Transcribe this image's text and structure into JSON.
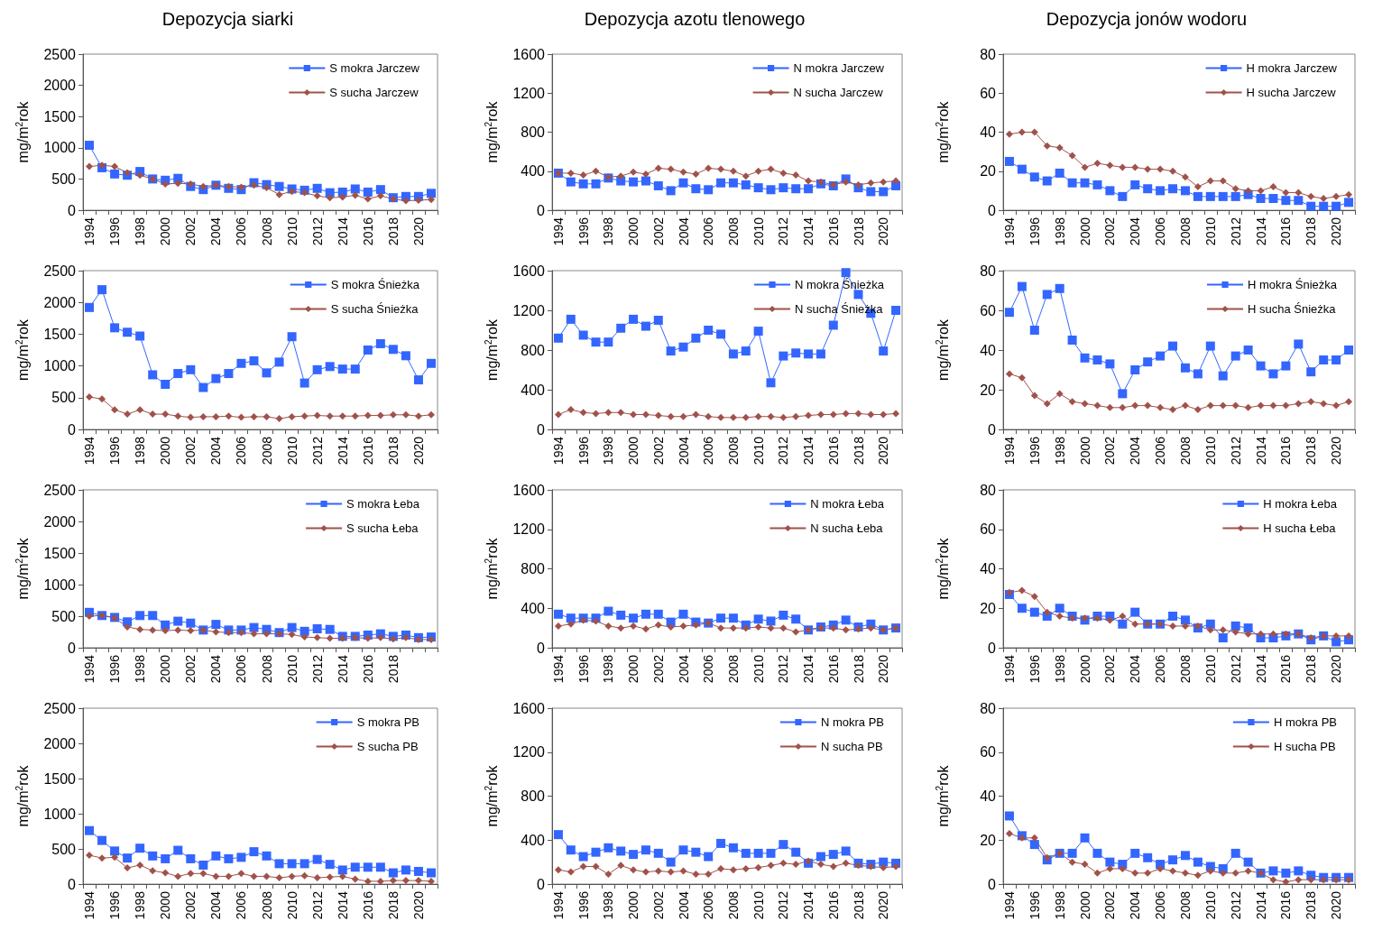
{
  "chart_data": [
    {
      "type": "line",
      "title": "Depozycja siarki",
      "ylabel": "mg/m$^{2}$rok",
      "categories": [
        "1994",
        null,
        "1996",
        null,
        "1998",
        null,
        "2000",
        null,
        "2002",
        null,
        "2004",
        null,
        "2006",
        null,
        "2008",
        null,
        "2010",
        null,
        "2012",
        null,
        "2014",
        null,
        "2016",
        null,
        "2018",
        null,
        "2020",
        null
      ],
      "ylim": [
        0,
        2500
      ],
      "yticks": [
        0,
        500,
        1000,
        1500,
        2000,
        2500
      ],
      "legend": "top right",
      "series": [
        {
          "name": "S mokra Jarczew",
          "color": "#3366ff",
          "marker": "square",
          "values": [
            1040,
            680,
            580,
            560,
            620,
            500,
            480,
            510,
            380,
            330,
            400,
            350,
            330,
            440,
            410,
            380,
            340,
            320,
            350,
            280,
            290,
            340,
            290,
            330,
            200,
            220,
            220,
            270
          ]
        },
        {
          "name": "S sucha Jarczew",
          "color": "#a0524a",
          "marker": "diamond",
          "values": [
            700,
            720,
            700,
            600,
            560,
            500,
            420,
            430,
            420,
            380,
            400,
            380,
            370,
            400,
            360,
            250,
            300,
            280,
            230,
            200,
            210,
            240,
            180,
            230,
            180,
            150,
            160,
            170
          ]
        }
      ]
    },
    {
      "type": "line",
      "title": "Depozycja azotu tlenowego",
      "ylabel": "mg/m$^{2}$rok",
      "categories": [
        "1994",
        null,
        "1996",
        null,
        "1998",
        null,
        "2000",
        null,
        "2002",
        null,
        "2004",
        null,
        "2006",
        null,
        "2008",
        null,
        "2010",
        null,
        "2012",
        null,
        "2014",
        null,
        "2016",
        null,
        "2018",
        null,
        "2020",
        null
      ],
      "ylim": [
        0,
        1600
      ],
      "yticks": [
        0,
        400,
        800,
        1200,
        1600
      ],
      "legend": "top right",
      "series": [
        {
          "name": "N mokra Jarczew",
          "color": "#3366ff",
          "marker": "square",
          "values": [
            380,
            290,
            270,
            270,
            330,
            300,
            290,
            300,
            250,
            200,
            280,
            220,
            210,
            280,
            280,
            260,
            230,
            210,
            230,
            220,
            220,
            270,
            250,
            320,
            230,
            190,
            190,
            250
          ]
        },
        {
          "name": "N sucha Jarczew",
          "color": "#a0524a",
          "marker": "diamond",
          "values": [
            380,
            380,
            360,
            400,
            340,
            350,
            390,
            370,
            430,
            420,
            390,
            370,
            430,
            420,
            400,
            350,
            400,
            420,
            380,
            360,
            300,
            290,
            260,
            290,
            260,
            280,
            290,
            300
          ]
        }
      ]
    },
    {
      "type": "line",
      "title": "Depozycja jonów wodoru",
      "ylabel": "mg/m$^{2}$rok",
      "categories": [
        "1994",
        null,
        "1996",
        null,
        "1998",
        null,
        "2000",
        null,
        "2002",
        null,
        "2004",
        null,
        "2006",
        null,
        "2008",
        null,
        "2010",
        null,
        "2012",
        null,
        "2014",
        null,
        "2016",
        null,
        "2018",
        null,
        "2020",
        null
      ],
      "ylim": [
        0,
        80
      ],
      "yticks": [
        0,
        20,
        40,
        60,
        80
      ],
      "legend": "top right",
      "series": [
        {
          "name": "H mokra Jarczew",
          "color": "#3366ff",
          "marker": "square",
          "values": [
            25,
            21,
            17,
            15,
            19,
            14,
            14,
            13,
            10,
            7,
            13,
            11,
            10,
            11,
            10,
            7,
            7,
            7,
            7,
            8,
            6,
            6,
            5,
            5,
            2,
            2,
            2,
            4
          ]
        },
        {
          "name": "H sucha Jarczew",
          "color": "#a0524a",
          "marker": "diamond",
          "values": [
            39,
            40,
            40,
            33,
            32,
            28,
            22,
            24,
            23,
            22,
            22,
            21,
            21,
            20,
            17,
            12,
            15,
            15,
            11,
            10,
            10,
            12,
            9,
            9,
            7,
            6,
            7,
            8
          ]
        }
      ]
    },
    {
      "type": "line",
      "ylabel": "mg/m$^{2}$rok",
      "categories": [
        "1994",
        null,
        "1996",
        null,
        "1998",
        null,
        "2000",
        null,
        "2002",
        null,
        "2004",
        null,
        "2006",
        null,
        "2008",
        null,
        "2010",
        null,
        "2012",
        null,
        "2014",
        null,
        "2016",
        null,
        "2018",
        null,
        "2020",
        null
      ],
      "ylim": [
        0,
        2500
      ],
      "yticks": [
        0,
        500,
        1000,
        1500,
        2000,
        2500
      ],
      "legend": "top right",
      "series": [
        {
          "name": "S mokra Śnieżka",
          "color": "#3366ff",
          "marker": "square",
          "values": [
            1920,
            2200,
            1600,
            1530,
            1470,
            860,
            710,
            880,
            940,
            660,
            800,
            880,
            1040,
            1080,
            890,
            1060,
            1460,
            730,
            940,
            990,
            950,
            950,
            1250,
            1350,
            1260,
            1160,
            780,
            1040
          ]
        },
        {
          "name": "S sucha Śnieżka",
          "color": "#a0524a",
          "marker": "diamond",
          "values": [
            510,
            480,
            310,
            240,
            310,
            240,
            240,
            210,
            190,
            200,
            200,
            210,
            190,
            200,
            200,
            170,
            200,
            210,
            220,
            210,
            210,
            210,
            220,
            220,
            230,
            230,
            210,
            230
          ]
        }
      ]
    },
    {
      "type": "line",
      "ylabel": "mg/m$^{2}$rok",
      "categories": [
        "1994",
        null,
        "1996",
        null,
        "1998",
        null,
        "2000",
        null,
        "2002",
        null,
        "2004",
        null,
        "2006",
        null,
        "2008",
        null,
        "2010",
        null,
        "2012",
        null,
        "2014",
        null,
        "2016",
        null,
        "2018",
        null,
        "2020",
        null
      ],
      "ylim": [
        0,
        1600
      ],
      "yticks": [
        0,
        400,
        800,
        1200,
        1600
      ],
      "legend": "top right",
      "series": [
        {
          "name": "N mokra Śnieżka",
          "color": "#3366ff",
          "marker": "square",
          "values": [
            920,
            1110,
            950,
            880,
            880,
            1020,
            1110,
            1040,
            1100,
            790,
            830,
            920,
            1000,
            960,
            760,
            790,
            990,
            470,
            740,
            770,
            760,
            760,
            1050,
            1580,
            1360,
            1170,
            790,
            1200
          ]
        },
        {
          "name": "N sucha Śnieżka",
          "color": "#a0524a",
          "marker": "diamond",
          "values": [
            150,
            200,
            170,
            160,
            170,
            170,
            150,
            150,
            140,
            130,
            130,
            150,
            130,
            120,
            120,
            120,
            130,
            130,
            120,
            130,
            140,
            150,
            150,
            160,
            160,
            150,
            150,
            160
          ]
        }
      ]
    },
    {
      "type": "line",
      "ylabel": "mg/m$^{2}$rok",
      "categories": [
        "1994",
        null,
        "1996",
        null,
        "1998",
        null,
        "2000",
        null,
        "2002",
        null,
        "2004",
        null,
        "2006",
        null,
        "2008",
        null,
        "2010",
        null,
        "2012",
        null,
        "2014",
        null,
        "2016",
        null,
        "2018",
        null,
        "2020",
        null
      ],
      "ylim": [
        0,
        80
      ],
      "yticks": [
        0,
        20,
        40,
        60,
        80
      ],
      "legend": "top right",
      "series": [
        {
          "name": "H mokra Śnieżka",
          "color": "#3366ff",
          "marker": "square",
          "values": [
            59,
            72,
            50,
            68,
            71,
            45,
            36,
            35,
            33,
            18,
            30,
            34,
            37,
            42,
            31,
            28,
            42,
            27,
            37,
            40,
            32,
            28,
            32,
            43,
            29,
            35,
            35,
            40
          ]
        },
        {
          "name": "H sucha Śnieżka",
          "color": "#a0524a",
          "marker": "diamond",
          "values": [
            28,
            26,
            17,
            13,
            18,
            14,
            13,
            12,
            11,
            11,
            12,
            12,
            11,
            10,
            12,
            10,
            12,
            12,
            12,
            11,
            12,
            12,
            12,
            13,
            14,
            13,
            12,
            14
          ]
        }
      ]
    },
    {
      "type": "line",
      "ylabel": "mg/m$^{2}$rok",
      "categories": [
        "1994",
        null,
        "1996",
        null,
        "1998",
        null,
        "2000",
        null,
        "2002",
        null,
        "2004",
        null,
        "2006",
        null,
        "2008",
        null,
        "2010",
        null,
        "2012",
        null,
        "2014",
        null,
        "2016",
        null,
        "2018",
        null,
        null,
        null
      ],
      "ylim": [
        0,
        2500
      ],
      "yticks": [
        0,
        500,
        1000,
        1500,
        2000,
        2500
      ],
      "legend": "top right",
      "series": [
        {
          "name": "S mokra Łeba",
          "color": "#3366ff",
          "marker": "square",
          "values": [
            560,
            510,
            480,
            410,
            510,
            510,
            360,
            420,
            390,
            280,
            370,
            280,
            280,
            320,
            290,
            240,
            320,
            260,
            300,
            290,
            180,
            180,
            200,
            220,
            180,
            200,
            160,
            170
          ]
        },
        {
          "name": "S sucha Łeba",
          "color": "#a0524a",
          "marker": "diamond",
          "values": [
            500,
            510,
            470,
            330,
            290,
            280,
            270,
            280,
            270,
            280,
            250,
            240,
            240,
            220,
            220,
            220,
            210,
            170,
            160,
            150,
            150,
            160,
            150,
            160,
            140,
            160,
            130,
            130
          ]
        }
      ]
    },
    {
      "type": "line",
      "ylabel": "mg/m$^{2}$rok",
      "categories": [
        "1994",
        null,
        "1996",
        null,
        "1998",
        null,
        "2000",
        null,
        "2002",
        null,
        "2004",
        null,
        "2006",
        null,
        "2008",
        null,
        "2010",
        null,
        "2012",
        null,
        "2014",
        null,
        "2016",
        null,
        "2018",
        null,
        "2020",
        null
      ],
      "ylim": [
        0,
        1600
      ],
      "yticks": [
        0,
        400,
        800,
        1200,
        1600
      ],
      "legend": "top right",
      "series": [
        {
          "name": "N mokra Łeba",
          "color": "#3366ff",
          "marker": "square",
          "values": [
            340,
            300,
            300,
            300,
            370,
            330,
            300,
            340,
            340,
            260,
            340,
            260,
            250,
            300,
            300,
            230,
            290,
            270,
            330,
            290,
            180,
            210,
            230,
            280,
            210,
            240,
            180,
            200
          ]
        },
        {
          "name": "N sucha Łeba",
          "color": "#a0524a",
          "marker": "diamond",
          "values": [
            220,
            240,
            280,
            270,
            220,
            200,
            220,
            190,
            230,
            210,
            220,
            230,
            250,
            200,
            200,
            200,
            210,
            200,
            200,
            160,
            180,
            200,
            200,
            180,
            190,
            200,
            180,
            200
          ]
        }
      ]
    },
    {
      "type": "line",
      "ylabel": "mg/m$^{2}$rok",
      "categories": [
        "1994",
        null,
        "1996",
        null,
        "1998",
        null,
        "2000",
        null,
        "2002",
        null,
        "2004",
        null,
        "2006",
        null,
        "2008",
        null,
        "2010",
        null,
        "2012",
        null,
        "2014",
        null,
        "2016",
        null,
        "2018",
        null,
        "2020",
        null
      ],
      "ylim": [
        0,
        80
      ],
      "yticks": [
        0,
        20,
        40,
        60,
        80
      ],
      "legend": "top right",
      "series": [
        {
          "name": "H mokra Łeba",
          "color": "#3366ff",
          "marker": "square",
          "values": [
            27,
            20,
            18,
            16,
            20,
            16,
            14,
            16,
            16,
            12,
            18,
            12,
            12,
            16,
            14,
            10,
            12,
            5,
            11,
            10,
            5,
            5,
            6,
            7,
            4,
            6,
            3,
            4
          ]
        },
        {
          "name": "H sucha Łeba",
          "color": "#a0524a",
          "marker": "diamond",
          "values": [
            28,
            29,
            26,
            18,
            16,
            15,
            15,
            15,
            14,
            16,
            12,
            12,
            12,
            11,
            11,
            11,
            9,
            9,
            8,
            7,
            7,
            7,
            7,
            7,
            5,
            6,
            6,
            6
          ]
        }
      ]
    },
    {
      "type": "line",
      "ylabel": "mg/m$^{2}$rok",
      "categories": [
        "1994",
        null,
        "1996",
        null,
        "1998",
        null,
        "2000",
        null,
        "2002",
        null,
        "2004",
        null,
        "2006",
        null,
        "2008",
        null,
        "2010",
        null,
        "2012",
        null,
        "2014",
        null,
        "2016",
        null,
        "2018",
        null,
        "2020",
        null
      ],
      "ylim": [
        0,
        2500
      ],
      "yticks": [
        0,
        500,
        1000,
        1500,
        2000,
        2500
      ],
      "legend": "top right",
      "series": [
        {
          "name": "S mokra PB",
          "color": "#3366ff",
          "marker": "square",
          "values": [
            760,
            620,
            470,
            370,
            510,
            400,
            360,
            480,
            360,
            270,
            400,
            360,
            380,
            460,
            400,
            290,
            290,
            290,
            350,
            280,
            200,
            240,
            240,
            240,
            160,
            200,
            180,
            160
          ]
        },
        {
          "name": "S sucha PB",
          "color": "#a0524a",
          "marker": "diamond",
          "values": [
            410,
            370,
            380,
            230,
            270,
            190,
            160,
            110,
            150,
            150,
            110,
            110,
            150,
            110,
            110,
            90,
            110,
            120,
            90,
            100,
            110,
            70,
            40,
            40,
            50,
            50,
            50,
            40
          ]
        }
      ]
    },
    {
      "type": "line",
      "ylabel": "mg/m$^{2}$rok",
      "categories": [
        "1994",
        null,
        "1996",
        null,
        "1998",
        null,
        "2000",
        null,
        "2002",
        null,
        "2004",
        null,
        "2006",
        null,
        "2008",
        null,
        "2010",
        null,
        "2012",
        null,
        "2014",
        null,
        "2016",
        null,
        "2018",
        null,
        "2020",
        null
      ],
      "ylim": [
        0,
        1600
      ],
      "yticks": [
        0,
        400,
        800,
        1200,
        1600
      ],
      "legend": "top right",
      "series": [
        {
          "name": "N mokra PB",
          "color": "#3366ff",
          "marker": "square",
          "values": [
            450,
            310,
            250,
            290,
            330,
            300,
            270,
            310,
            280,
            200,
            310,
            290,
            250,
            370,
            330,
            280,
            280,
            280,
            360,
            290,
            190,
            250,
            270,
            300,
            190,
            180,
            200,
            190
          ]
        },
        {
          "name": "N sucha PB",
          "color": "#a0524a",
          "marker": "diamond",
          "values": [
            130,
            110,
            160,
            160,
            90,
            170,
            130,
            110,
            120,
            110,
            120,
            90,
            90,
            140,
            130,
            140,
            150,
            170,
            190,
            180,
            210,
            180,
            160,
            190,
            170,
            160,
            150,
            160
          ]
        }
      ]
    },
    {
      "type": "line",
      "ylabel": "mg/m$^{2}$rok",
      "categories": [
        "1994",
        null,
        "1996",
        null,
        "1998",
        null,
        "2000",
        null,
        "2002",
        null,
        "2004",
        null,
        "2006",
        null,
        "2008",
        null,
        "2010",
        null,
        "2012",
        null,
        "2014",
        null,
        "2016",
        null,
        "2018",
        null,
        "2020",
        null
      ],
      "ylim": [
        0,
        80
      ],
      "yticks": [
        0,
        20,
        40,
        60,
        80
      ],
      "legend": "top right",
      "series": [
        {
          "name": "H mokra PB",
          "color": "#3366ff",
          "marker": "square",
          "values": [
            31,
            22,
            18,
            11,
            14,
            14,
            21,
            14,
            10,
            9,
            14,
            12,
            9,
            11,
            13,
            10,
            8,
            7,
            14,
            10,
            5,
            6,
            5,
            6,
            4,
            3,
            3,
            3
          ]
        },
        {
          "name": "H sucha PB",
          "color": "#a0524a",
          "marker": "diamond",
          "values": [
            23,
            21,
            21,
            12,
            14,
            10,
            9,
            5,
            7,
            7,
            5,
            5,
            7,
            6,
            5,
            4,
            6,
            5,
            5,
            6,
            5,
            2,
            1,
            2,
            2,
            2,
            2,
            2
          ]
        }
      ]
    }
  ]
}
